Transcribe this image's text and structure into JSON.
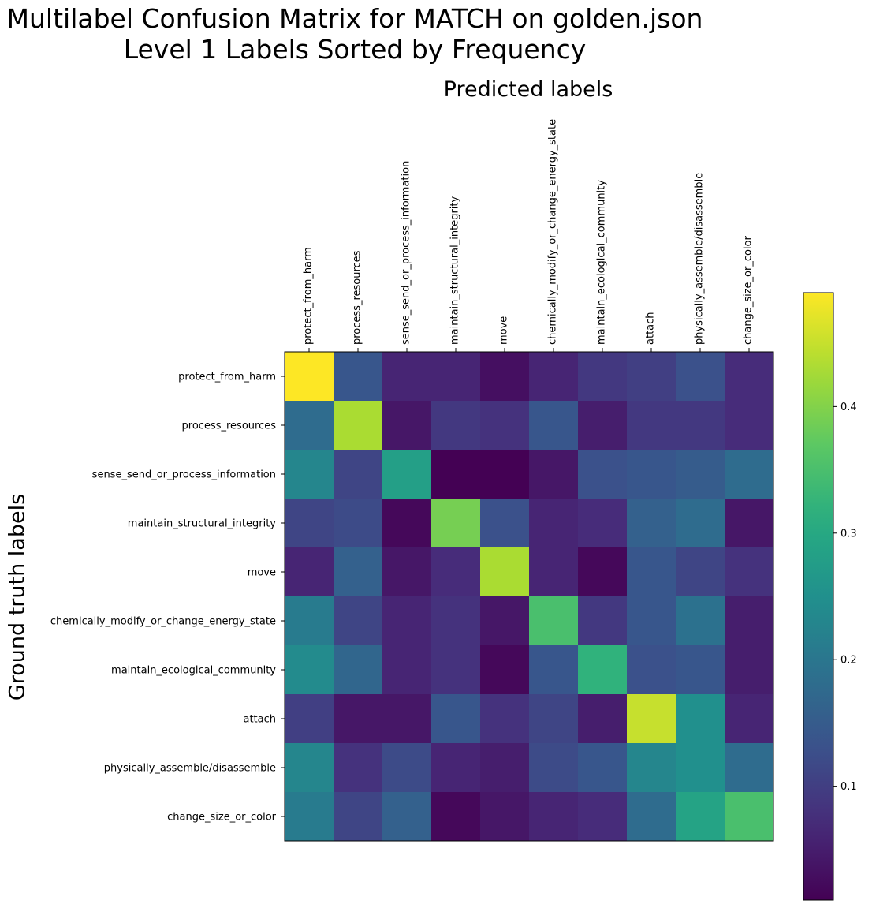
{
  "chart_data": {
    "type": "heatmap",
    "title": "Multilabel Confusion Matrix for MATCH on golden.json",
    "subtitle": "Level 1 Labels Sorted by Frequency",
    "xlabel": "Predicted labels",
    "ylabel": "Ground truth labels",
    "x_categories": [
      "protect_from_harm",
      "process_resources",
      "sense_send_or_process_information",
      "maintain_structural_integrity",
      "move",
      "chemically_modify_or_change_energy_state",
      "maintain_ecological_community",
      "attach",
      "physically_assemble/disassemble",
      "change_size_or_color"
    ],
    "y_categories": [
      "protect_from_harm",
      "process_resources",
      "sense_send_or_process_information",
      "maintain_structural_integrity",
      "move",
      "chemically_modify_or_change_energy_state",
      "maintain_ecological_community",
      "attach",
      "physically_assemble/disassemble",
      "change_size_or_color"
    ],
    "values": [
      [
        0.49,
        0.14,
        0.06,
        0.06,
        0.03,
        0.06,
        0.09,
        0.1,
        0.13,
        0.07
      ],
      [
        0.18,
        0.43,
        0.04,
        0.09,
        0.08,
        0.14,
        0.05,
        0.09,
        0.09,
        0.07
      ],
      [
        0.23,
        0.11,
        0.28,
        0.01,
        0.01,
        0.04,
        0.13,
        0.14,
        0.15,
        0.18
      ],
      [
        0.11,
        0.12,
        0.02,
        0.39,
        0.13,
        0.06,
        0.07,
        0.16,
        0.18,
        0.04
      ],
      [
        0.06,
        0.16,
        0.04,
        0.07,
        0.43,
        0.06,
        0.02,
        0.14,
        0.11,
        0.08
      ],
      [
        0.21,
        0.11,
        0.06,
        0.08,
        0.04,
        0.35,
        0.09,
        0.14,
        0.19,
        0.05
      ],
      [
        0.24,
        0.17,
        0.06,
        0.08,
        0.02,
        0.14,
        0.32,
        0.13,
        0.14,
        0.05
      ],
      [
        0.1,
        0.04,
        0.04,
        0.14,
        0.08,
        0.11,
        0.05,
        0.45,
        0.25,
        0.06
      ],
      [
        0.23,
        0.08,
        0.12,
        0.06,
        0.05,
        0.12,
        0.14,
        0.23,
        0.25,
        0.18
      ],
      [
        0.21,
        0.11,
        0.16,
        0.02,
        0.04,
        0.06,
        0.07,
        0.18,
        0.29,
        0.35
      ]
    ],
    "colormap": "viridis",
    "vmin": 0.01,
    "vmax": 0.49,
    "colorbar_ticks": [
      0.1,
      0.2,
      0.3,
      0.4
    ],
    "colorbar_tick_labels": [
      "0.1",
      "0.2",
      "0.3",
      "0.4"
    ],
    "legend_position": "right",
    "grid": false
  }
}
